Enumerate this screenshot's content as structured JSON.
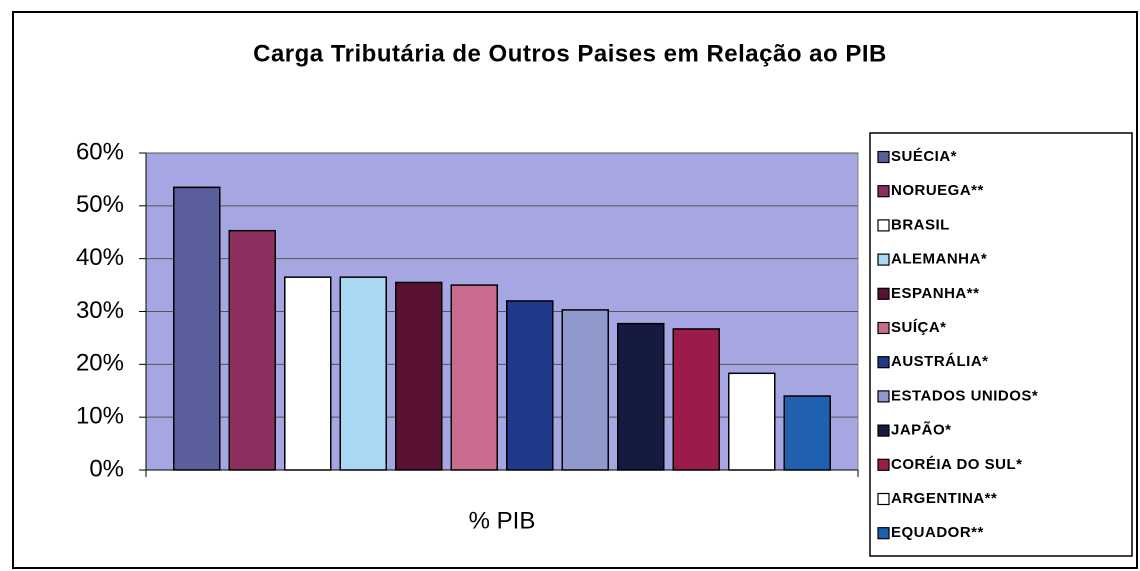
{
  "chart_data": {
    "type": "bar",
    "title": "Carga Tributária de Outros Paises em Relação ao PIB",
    "categories": [
      "% PIB"
    ],
    "series": [
      {
        "name": "SUÉCIA*",
        "color": "#5a5f9c",
        "values": [
          53.5
        ]
      },
      {
        "name": "NORUEGA**",
        "color": "#8a2f5e",
        "values": [
          45.3
        ]
      },
      {
        "name": "BRASIL",
        "color": "#ffffff",
        "values": [
          36.5
        ]
      },
      {
        "name": "ALEMANHA*",
        "color": "#a8d8f2",
        "values": [
          36.5
        ]
      },
      {
        "name": "ESPANHA**",
        "color": "#5a1032",
        "values": [
          35.5
        ]
      },
      {
        "name": "SUÍÇA*",
        "color": "#c96b8e",
        "values": [
          35
        ]
      },
      {
        "name": "AUSTRÁLIA*",
        "color": "#1f3a8a",
        "values": [
          32
        ]
      },
      {
        "name": "ESTADOS UNIDOS*",
        "color": "#8f99cc",
        "values": [
          30.3
        ]
      },
      {
        "name": "JAPÃO*",
        "color": "#151a40",
        "values": [
          27.7
        ]
      },
      {
        "name": "CORÉIA DO SUL*",
        "color": "#9b1c4a",
        "values": [
          26.7
        ]
      },
      {
        "name": "ARGENTINA**",
        "color": "#ffffff",
        "values": [
          18.3
        ]
      },
      {
        "name": "EQUADOR**",
        "color": "#2060b0",
        "values": [
          14
        ]
      }
    ],
    "ylim": [
      0,
      60
    ],
    "yticks": [
      {
        "value": 0,
        "label": "0%"
      },
      {
        "value": 10,
        "label": "10%"
      },
      {
        "value": 20,
        "label": "20%"
      },
      {
        "value": 30,
        "label": "30%"
      },
      {
        "value": 40,
        "label": "40%"
      },
      {
        "value": 50,
        "label": "50%"
      },
      {
        "value": 60,
        "label": "60%"
      }
    ],
    "grid": true,
    "legend": "right"
  }
}
